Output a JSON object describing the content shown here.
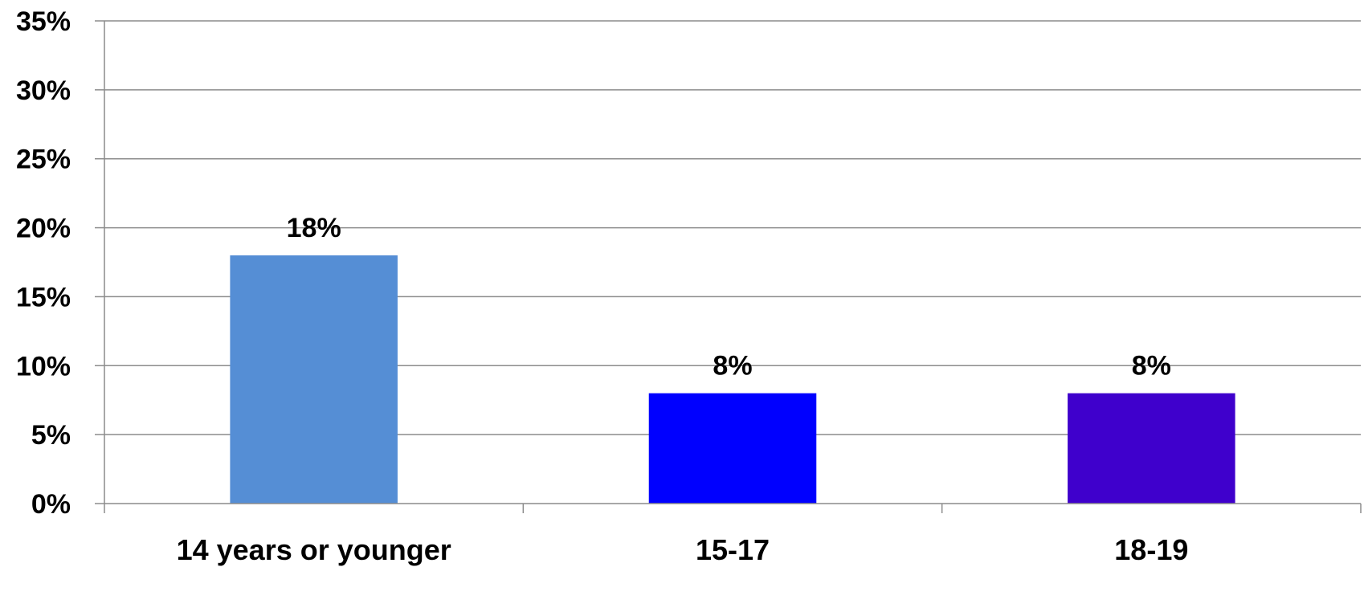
{
  "chart_data": {
    "type": "bar",
    "categories": [
      "14 years or younger",
      "15-17",
      "18-19"
    ],
    "values": [
      18,
      8,
      8
    ],
    "data_labels": [
      "18%",
      "8%",
      "8%"
    ],
    "bar_colors": [
      "#558ED5",
      "#0000FF",
      "#3F00CC"
    ],
    "title": "",
    "xlabel": "",
    "ylabel": "",
    "ylim": [
      0,
      35
    ],
    "y_ticks": [
      0,
      5,
      10,
      15,
      20,
      25,
      30,
      35
    ],
    "y_tick_labels": [
      "0%",
      "5%",
      "10%",
      "15%",
      "20%",
      "25%",
      "30%",
      "35%"
    ],
    "grid": true,
    "legend": "none"
  }
}
